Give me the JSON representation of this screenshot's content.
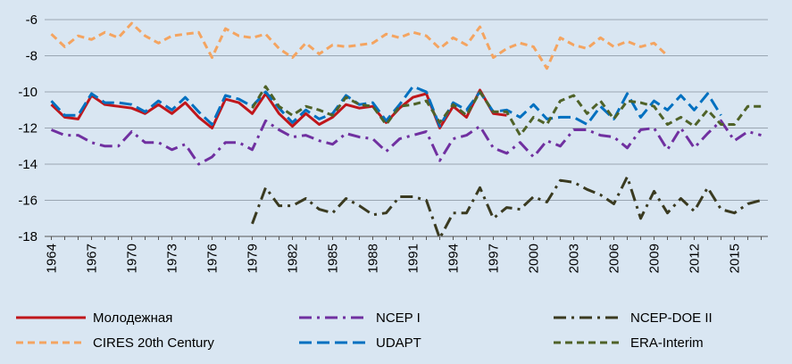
{
  "chart_data": {
    "type": "line",
    "title": "",
    "xlabel": "",
    "ylabel": "",
    "xlim": [
      1964,
      2017
    ],
    "ylim": [
      -18,
      -6
    ],
    "y_ticks": [
      -6,
      -8,
      -10,
      -12,
      -14,
      -16,
      -18
    ],
    "x_ticks": [
      1964,
      1967,
      1970,
      1973,
      1976,
      1979,
      1982,
      1985,
      1988,
      1991,
      1994,
      1997,
      2000,
      2003,
      2006,
      2009,
      2012,
      2015
    ],
    "grid": "horizontal",
    "legend_position": "bottom",
    "series": [
      {
        "name": "Молодежная",
        "color": "#c0161b",
        "dash": "solid",
        "x": [
          1964,
          1965,
          1966,
          1967,
          1968,
          1969,
          1970,
          1971,
          1972,
          1973,
          1974,
          1975,
          1976,
          1977,
          1978,
          1979,
          1980,
          1981,
          1982,
          1983,
          1984,
          1985,
          1986,
          1987,
          1988,
          1989,
          1990,
          1991,
          1992,
          1993,
          1994,
          1995,
          1996,
          1997,
          1998
        ],
        "y": [
          -10.7,
          -11.4,
          -11.5,
          -10.2,
          -10.7,
          -10.8,
          -10.9,
          -11.2,
          -10.7,
          -11.2,
          -10.6,
          -11.4,
          -12.0,
          -10.4,
          -10.6,
          -11.2,
          -10.1,
          -11.2,
          -11.9,
          -11.2,
          -11.8,
          -11.4,
          -10.7,
          -10.9,
          -10.8,
          -11.7,
          -10.9,
          -10.3,
          -10.1,
          -12.0,
          -10.8,
          -11.4,
          -9.9,
          -11.2,
          -11.3
        ]
      },
      {
        "name": "NCEP I",
        "color": "#7030a0",
        "dash": "long-dash-dot",
        "x": [
          1964,
          1965,
          1966,
          1967,
          1968,
          1969,
          1970,
          1971,
          1972,
          1973,
          1974,
          1975,
          1976,
          1977,
          1978,
          1979,
          1980,
          1981,
          1982,
          1983,
          1984,
          1985,
          1986,
          1987,
          1988,
          1989,
          1990,
          1991,
          1992,
          1993,
          1994,
          1995,
          1996,
          1997,
          1998,
          1999,
          2000,
          2001,
          2002,
          2003,
          2004,
          2005,
          2006,
          2007,
          2008,
          2009,
          2010,
          2011,
          2012,
          2013,
          2014,
          2015,
          2016,
          2017
        ],
        "y": [
          -12.1,
          -12.4,
          -12.4,
          -12.8,
          -13.0,
          -13.0,
          -12.2,
          -12.8,
          -12.8,
          -13.2,
          -12.9,
          -14.0,
          -13.6,
          -12.8,
          -12.8,
          -13.2,
          -11.6,
          -12.1,
          -12.5,
          -12.4,
          -12.7,
          -12.9,
          -12.3,
          -12.5,
          -12.6,
          -13.3,
          -12.6,
          -12.4,
          -12.2,
          -13.8,
          -12.6,
          -12.4,
          -11.9,
          -13.1,
          -13.4,
          -12.8,
          -13.6,
          -12.7,
          -13.0,
          -12.1,
          -12.1,
          -12.4,
          -12.5,
          -13.1,
          -12.1,
          -12.0,
          -13.2,
          -12.0,
          -13.1,
          -12.3,
          -11.6,
          -12.7,
          -12.2,
          -12.4
        ]
      },
      {
        "name": "NCEP-DOE II",
        "color": "#3a3a20",
        "dash": "long-dash-dot",
        "x": [
          1979,
          1980,
          1981,
          1982,
          1983,
          1984,
          1985,
          1986,
          1987,
          1988,
          1989,
          1990,
          1991,
          1992,
          1993,
          1994,
          1995,
          1996,
          1997,
          1998,
          1999,
          2000,
          2001,
          2002,
          2003,
          2004,
          2005,
          2006,
          2007,
          2008,
          2009,
          2010,
          2011,
          2012,
          2013,
          2014,
          2015,
          2016,
          2017
        ],
        "y": [
          -17.3,
          -15.3,
          -16.3,
          -16.3,
          -15.9,
          -16.5,
          -16.7,
          -15.9,
          -16.3,
          -16.8,
          -16.7,
          -15.8,
          -15.8,
          -16.0,
          -18.1,
          -16.7,
          -16.7,
          -15.3,
          -17.0,
          -16.4,
          -16.5,
          -15.8,
          -16.1,
          -14.9,
          -15.0,
          -15.4,
          -15.7,
          -16.2,
          -14.7,
          -17.0,
          -15.5,
          -16.7,
          -15.9,
          -16.6,
          -15.3,
          -16.5,
          -16.7,
          -16.2,
          -16.0
        ]
      },
      {
        "name": "CIRES 20th Century",
        "color": "#f4a460",
        "dash": "dash",
        "x": [
          1964,
          1965,
          1966,
          1967,
          1968,
          1969,
          1970,
          1971,
          1972,
          1973,
          1974,
          1975,
          1976,
          1977,
          1978,
          1979,
          1980,
          1981,
          1982,
          1983,
          1984,
          1985,
          1986,
          1987,
          1988,
          1989,
          1990,
          1991,
          1992,
          1993,
          1994,
          1995,
          1996,
          1997,
          1998,
          1999,
          2000,
          2001,
          2002,
          2003,
          2004,
          2005,
          2006,
          2007,
          2008,
          2009,
          2010
        ],
        "y": [
          -6.8,
          -7.5,
          -6.9,
          -7.1,
          -6.7,
          -7.0,
          -6.2,
          -6.9,
          -7.3,
          -6.9,
          -6.8,
          -6.7,
          -8.1,
          -6.5,
          -6.9,
          -7.0,
          -6.8,
          -7.6,
          -8.1,
          -7.3,
          -7.9,
          -7.4,
          -7.5,
          -7.4,
          -7.3,
          -6.8,
          -7.0,
          -6.7,
          -6.9,
          -7.6,
          -7.0,
          -7.4,
          -6.4,
          -8.1,
          -7.6,
          -7.3,
          -7.5,
          -8.7,
          -7.0,
          -7.4,
          -7.6,
          -7.0,
          -7.5,
          -7.2,
          -7.5,
          -7.3,
          -8.0
        ]
      },
      {
        "name": "UDAPT",
        "color": "#0070c0",
        "dash": "long-dash",
        "x": [
          1964,
          1965,
          1966,
          1967,
          1968,
          1969,
          1970,
          1971,
          1972,
          1973,
          1974,
          1975,
          1976,
          1977,
          1978,
          1979,
          1980,
          1981,
          1982,
          1983,
          1984,
          1985,
          1986,
          1987,
          1988,
          1989,
          1990,
          1991,
          1992,
          1993,
          1994,
          1995,
          1996,
          1997,
          1998,
          1999,
          2000,
          2001,
          2002,
          2003,
          2004,
          2005,
          2006,
          2007,
          2008,
          2009,
          2010,
          2011,
          2012,
          2013,
          2014
        ],
        "y": [
          -10.5,
          -11.3,
          -11.3,
          -10.1,
          -10.6,
          -10.6,
          -10.7,
          -11.1,
          -10.5,
          -11.0,
          -10.3,
          -11.1,
          -11.8,
          -10.2,
          -10.4,
          -10.8,
          -10.0,
          -10.9,
          -11.7,
          -11.0,
          -11.5,
          -11.2,
          -10.2,
          -10.7,
          -10.6,
          -11.6,
          -10.7,
          -9.7,
          -10.0,
          -11.9,
          -10.6,
          -11.0,
          -10.0,
          -11.1,
          -11.0,
          -11.4,
          -10.7,
          -11.5,
          -11.4,
          -11.4,
          -11.8,
          -10.8,
          -11.5,
          -10.1,
          -11.4,
          -10.5,
          -11.0,
          -10.2,
          -11.0,
          -10.1,
          -11.3
        ]
      },
      {
        "name": "ERA-Interim",
        "color": "#4f6228",
        "dash": "dash",
        "x": [
          1979,
          1980,
          1981,
          1982,
          1983,
          1984,
          1985,
          1986,
          1987,
          1988,
          1989,
          1990,
          1991,
          1992,
          1993,
          1994,
          1995,
          1996,
          1997,
          1998,
          1999,
          2000,
          2001,
          2002,
          2003,
          2004,
          2005,
          2006,
          2007,
          2008,
          2009,
          2010,
          2011,
          2012,
          2013,
          2014,
          2015,
          2016,
          2017
        ],
        "y": [
          -10.9,
          -9.7,
          -10.8,
          -11.3,
          -10.8,
          -11.0,
          -11.3,
          -10.3,
          -10.7,
          -10.8,
          -11.8,
          -10.8,
          -10.7,
          -10.5,
          -11.7,
          -10.7,
          -11.3,
          -10.0,
          -11.1,
          -11.1,
          -12.4,
          -11.4,
          -11.8,
          -10.5,
          -10.2,
          -11.2,
          -10.5,
          -11.5,
          -10.5,
          -10.6,
          -10.8,
          -11.8,
          -11.4,
          -11.9,
          -11.0,
          -11.8,
          -11.8,
          -10.8,
          -10.8
        ]
      }
    ]
  }
}
